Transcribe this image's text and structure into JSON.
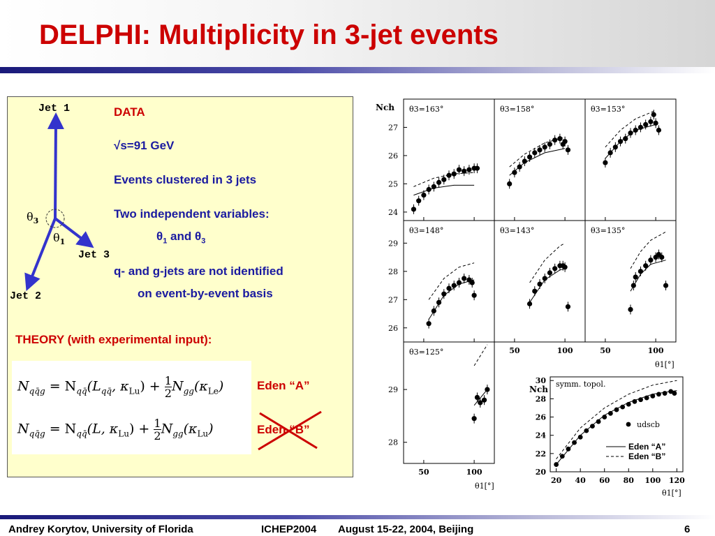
{
  "title": "DELPHI:  Multiplicity in 3-jet events",
  "footer": {
    "author": "Andrey Korytov, University of Florida",
    "conference": "ICHEP2004",
    "dates": "August 15-22, 2004, Beijing",
    "page": "6"
  },
  "diagram": {
    "jet1": "Jet 1",
    "jet2": "Jet 2",
    "jet3": "Jet 3",
    "theta3": "θ",
    "theta3_sub": "3",
    "theta1": "θ",
    "theta1_sub": "1"
  },
  "info": {
    "data_heading": "DATA",
    "energy": "√s=91 GeV",
    "clustering": "Events clustered in 3 jets",
    "variables": "Two independent variables:",
    "vars_t1": "θ",
    "vars_t1_sub": "1",
    "vars_and": " and ",
    "vars_t3": "θ",
    "vars_t3_sub": "3",
    "ident_line1": "q- and g-jets are not identified",
    "ident_line2": "on event-by-event basis",
    "theory": "THEORY (with experimental input):",
    "eden_a": "Eden “A”",
    "eden_b": "Eden “B”"
  },
  "formulas": {
    "a_left": "N",
    "a_left_sub": "qq̄g",
    "a_mid": " = N",
    "a_mid_sub": "qq̄",
    "a_arg": "(L",
    "a_arg_sub": "qq̄",
    "a_arg2": ", κ",
    "a_arg2_sub": "Lu",
    "a_plus": ") + ",
    "a_num": "1",
    "a_den": "2",
    "a_ngg": "N",
    "a_ngg_sub": "gg",
    "a_k": "(κ",
    "a_k_sub": "Le",
    "a_close": ")",
    "b_left": "N",
    "b_left_sub": "qq̄g",
    "b_mid": " = N",
    "b_mid_sub": "qq̄",
    "b_arg": "(L, κ",
    "b_arg_sub": "Lu",
    "b_plus": ") + ",
    "b_num": "1",
    "b_den": "2",
    "b_ngg": "N",
    "b_ngg_sub": "gg",
    "b_k": "(κ",
    "b_k_sub": "Lu",
    "b_close": ")"
  },
  "chart_data": {
    "type": "scatter",
    "ylabel": "Nch",
    "xlabel": "θ1[°]",
    "panels": [
      {
        "label": "θ3=163°",
        "ylim": [
          23.7,
          28
        ],
        "yticks": [
          24,
          25,
          26,
          27
        ],
        "data": [
          [
            40,
            24.1
          ],
          [
            45,
            24.4
          ],
          [
            50,
            24.6
          ],
          [
            55,
            24.8
          ],
          [
            60,
            24.9
          ],
          [
            65,
            25.05
          ],
          [
            70,
            25.15
          ],
          [
            75,
            25.3
          ],
          [
            80,
            25.35
          ],
          [
            85,
            25.5
          ],
          [
            90,
            25.45
          ],
          [
            95,
            25.5
          ],
          [
            100,
            25.55
          ],
          [
            103,
            25.55
          ]
        ],
        "dashed": [
          [
            40,
            24.9
          ],
          [
            60,
            25.2
          ],
          [
            80,
            25.35
          ],
          [
            100,
            25.4
          ]
        ],
        "solid": [
          [
            40,
            24.6
          ],
          [
            60,
            24.85
          ],
          [
            80,
            24.95
          ],
          [
            100,
            24.95
          ]
        ]
      },
      {
        "label": "θ3=158°",
        "ylim": [
          23.7,
          28
        ],
        "yticks": [],
        "data": [
          [
            45,
            25.0
          ],
          [
            50,
            25.4
          ],
          [
            55,
            25.6
          ],
          [
            60,
            25.8
          ],
          [
            65,
            25.95
          ],
          [
            70,
            26.1
          ],
          [
            75,
            26.2
          ],
          [
            80,
            26.3
          ],
          [
            85,
            26.4
          ],
          [
            90,
            26.55
          ],
          [
            95,
            26.6
          ],
          [
            98,
            26.4
          ],
          [
            100,
            26.5
          ],
          [
            103,
            26.2
          ]
        ],
        "dashed": [
          [
            45,
            25.6
          ],
          [
            60,
            26.05
          ],
          [
            80,
            26.45
          ],
          [
            100,
            26.65
          ]
        ],
        "solid": [
          [
            45,
            25.3
          ],
          [
            60,
            25.75
          ],
          [
            80,
            26.1
          ],
          [
            100,
            26.25
          ]
        ]
      },
      {
        "label": "θ3=153°",
        "ylim": [
          23.7,
          28
        ],
        "yticks": [],
        "data": [
          [
            50,
            25.75
          ],
          [
            55,
            26.1
          ],
          [
            60,
            26.3
          ],
          [
            65,
            26.5
          ],
          [
            70,
            26.6
          ],
          [
            75,
            26.8
          ],
          [
            80,
            26.9
          ],
          [
            85,
            27.0
          ],
          [
            90,
            27.1
          ],
          [
            95,
            27.2
          ],
          [
            98,
            27.45
          ],
          [
            100,
            27.15
          ],
          [
            103,
            26.9
          ]
        ],
        "dashed": [
          [
            50,
            26.3
          ],
          [
            65,
            26.9
          ],
          [
            80,
            27.3
          ],
          [
            100,
            27.6
          ]
        ],
        "solid": [
          [
            50,
            25.9
          ],
          [
            65,
            26.5
          ],
          [
            80,
            26.9
          ],
          [
            100,
            27.1
          ]
        ]
      },
      {
        "label": "θ3=148°",
        "ylim": [
          25.5,
          29.8
        ],
        "yticks": [
          26,
          27,
          28,
          29
        ],
        "data": [
          [
            55,
            26.15
          ],
          [
            60,
            26.6
          ],
          [
            65,
            26.9
          ],
          [
            70,
            27.2
          ],
          [
            75,
            27.4
          ],
          [
            80,
            27.5
          ],
          [
            85,
            27.6
          ],
          [
            90,
            27.75
          ],
          [
            95,
            27.7
          ],
          [
            98,
            27.6
          ],
          [
            100,
            27.15
          ]
        ],
        "dashed": [
          [
            55,
            27.0
          ],
          [
            70,
            27.75
          ],
          [
            85,
            28.15
          ],
          [
            100,
            28.3
          ]
        ],
        "solid": [
          [
            55,
            26.3
          ],
          [
            70,
            27.15
          ],
          [
            85,
            27.55
          ],
          [
            100,
            27.7
          ]
        ]
      },
      {
        "label": "θ3=143°",
        "ylim": [
          25.5,
          29.8
        ],
        "yticks": [],
        "data": [
          [
            65,
            26.85
          ],
          [
            70,
            27.3
          ],
          [
            75,
            27.55
          ],
          [
            80,
            27.75
          ],
          [
            85,
            27.95
          ],
          [
            90,
            28.1
          ],
          [
            95,
            28.2
          ],
          [
            98,
            28.2
          ],
          [
            100,
            28.15
          ],
          [
            103,
            26.75
          ]
        ],
        "dashed": [
          [
            65,
            27.6
          ],
          [
            80,
            28.4
          ],
          [
            95,
            28.9
          ],
          [
            100,
            29.0
          ]
        ],
        "solid": [
          [
            65,
            26.9
          ],
          [
            80,
            27.7
          ],
          [
            95,
            28.05
          ],
          [
            100,
            28.1
          ]
        ]
      },
      {
        "label": "θ3=135°",
        "ylim": [
          25.5,
          29.8
        ],
        "yticks": [],
        "data": [
          [
            75,
            26.65
          ],
          [
            78,
            27.5
          ],
          [
            80,
            27.8
          ],
          [
            85,
            28.0
          ],
          [
            90,
            28.2
          ],
          [
            95,
            28.4
          ],
          [
            100,
            28.5
          ],
          [
            103,
            28.6
          ],
          [
            106,
            28.5
          ],
          [
            110,
            27.5
          ]
        ],
        "dashed": [
          [
            75,
            28.1
          ],
          [
            85,
            28.7
          ],
          [
            95,
            29.1
          ],
          [
            110,
            29.4
          ]
        ],
        "solid": [
          [
            75,
            27.3
          ],
          [
            85,
            27.9
          ],
          [
            95,
            28.25
          ],
          [
            110,
            28.4
          ]
        ]
      },
      {
        "label": "θ3=125°",
        "ylim": [
          27.6,
          29.9
        ],
        "yticks": [
          28,
          29
        ],
        "data": [
          [
            100,
            28.45
          ],
          [
            103,
            28.85
          ],
          [
            106,
            28.75
          ],
          [
            110,
            28.8
          ],
          [
            113,
            29.0
          ]
        ],
        "dashed": [
          [
            100,
            29.45
          ],
          [
            113,
            29.85
          ]
        ],
        "solid": [
          [
            100,
            28.7
          ],
          [
            113,
            29.0
          ]
        ]
      }
    ],
    "xticks": [
      50,
      100
    ],
    "inset": {
      "label": "symm. topol.",
      "ylabel": "Nch",
      "xlabel": "θ1[°]",
      "xlim": [
        15,
        125
      ],
      "ylim": [
        20,
        30.4
      ],
      "xticks": [
        20,
        40,
        60,
        80,
        100,
        120
      ],
      "yticks": [
        20,
        22,
        24,
        26,
        28,
        30
      ],
      "marker_label": "udscb",
      "legend_a": "Eden “A”",
      "legend_b": "Eden “B”",
      "data": [
        [
          20,
          20.8
        ],
        [
          25,
          21.7
        ],
        [
          30,
          22.5
        ],
        [
          35,
          23.2
        ],
        [
          40,
          23.8
        ],
        [
          45,
          24.5
        ],
        [
          50,
          25.0
        ],
        [
          55,
          25.5
        ],
        [
          60,
          26.0
        ],
        [
          65,
          26.4
        ],
        [
          70,
          26.8
        ],
        [
          75,
          27.1
        ],
        [
          80,
          27.4
        ],
        [
          85,
          27.7
        ],
        [
          90,
          27.9
        ],
        [
          95,
          28.1
        ],
        [
          100,
          28.3
        ],
        [
          105,
          28.5
        ],
        [
          110,
          28.6
        ],
        [
          115,
          28.8
        ],
        [
          118,
          28.6
        ]
      ],
      "dashed": [
        [
          20,
          21.4
        ],
        [
          40,
          24.8
        ],
        [
          60,
          27.0
        ],
        [
          80,
          28.5
        ],
        [
          100,
          29.5
        ],
        [
          120,
          30.0
        ]
      ],
      "solid": [
        [
          20,
          20.8
        ],
        [
          40,
          24.0
        ],
        [
          60,
          26.2
        ],
        [
          80,
          27.6
        ],
        [
          100,
          28.5
        ],
        [
          120,
          28.9
        ]
      ]
    }
  }
}
